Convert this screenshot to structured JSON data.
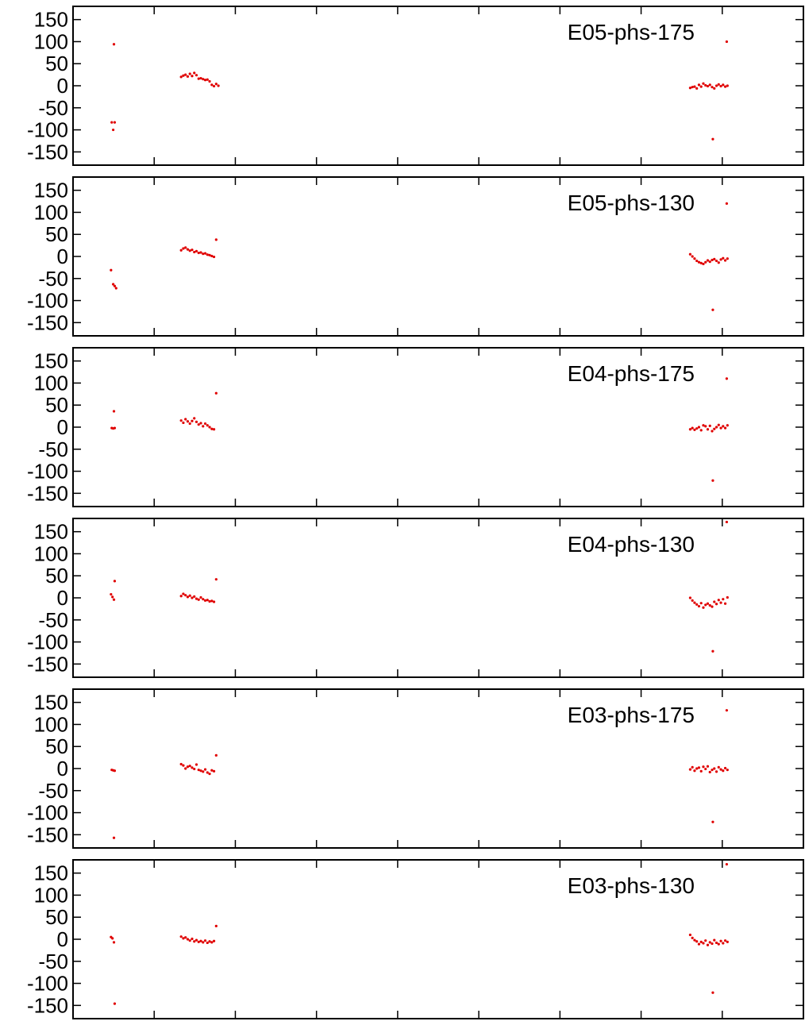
{
  "colors": {
    "series": "#e00000",
    "axis": "#000000",
    "background": "#ffffff"
  },
  "chart_data": [
    {
      "type": "scatter",
      "title": "E05-phs-175",
      "xlabel": "",
      "ylabel": "",
      "x_ticks": 9,
      "xlim": [
        0,
        100
      ],
      "ylim": [
        180,
        -180
      ],
      "y_ticks": [
        "-150",
        "-100",
        "-50",
        "0",
        "50",
        "100",
        "150"
      ],
      "y_tick_values": [
        -150,
        -100,
        -50,
        0,
        50,
        100,
        150
      ],
      "grid": false,
      "series": [
        {
          "points": [
            [
              5.5,
              -100
            ],
            [
              5.3,
              -83
            ],
            [
              5.7,
              -83
            ],
            [
              5.6,
              94
            ],
            [
              14.8,
              20
            ],
            [
              15.1,
              23
            ],
            [
              15.4,
              25
            ],
            [
              15.7,
              21
            ],
            [
              16.0,
              27
            ],
            [
              16.3,
              22
            ],
            [
              16.6,
              29
            ],
            [
              16.9,
              24
            ],
            [
              17.2,
              16
            ],
            [
              17.5,
              17
            ],
            [
              17.8,
              15
            ],
            [
              18.1,
              13
            ],
            [
              18.4,
              14
            ],
            [
              18.7,
              10
            ],
            [
              19.0,
              2
            ],
            [
              19.3,
              -1
            ],
            [
              19.6,
              4
            ],
            [
              19.9,
              0
            ],
            [
              84.5,
              -5
            ],
            [
              84.8,
              -3
            ],
            [
              85.1,
              -2
            ],
            [
              85.4,
              -6
            ],
            [
              85.7,
              2
            ],
            [
              86.0,
              -2
            ],
            [
              86.3,
              5
            ],
            [
              86.6,
              1
            ],
            [
              86.9,
              -1
            ],
            [
              87.2,
              2
            ],
            [
              87.5,
              -3
            ],
            [
              87.8,
              -6
            ],
            [
              88.1,
              0
            ],
            [
              88.4,
              3
            ],
            [
              88.7,
              -1
            ],
            [
              89.0,
              2
            ],
            [
              89.3,
              -2
            ],
            [
              89.6,
              0
            ],
            [
              87.6,
              -121
            ],
            [
              89.5,
              100
            ]
          ]
        }
      ]
    },
    {
      "type": "scatter",
      "title": "E05-phs-130",
      "xlabel": "",
      "ylabel": "",
      "x_ticks": 9,
      "xlim": [
        0,
        100
      ],
      "ylim": [
        180,
        -180
      ],
      "y_ticks": [
        "-150",
        "-100",
        "-50",
        "0",
        "50",
        "100",
        "150"
      ],
      "y_tick_values": [
        -150,
        -100,
        -50,
        0,
        50,
        100,
        150
      ],
      "grid": false,
      "series": [
        {
          "points": [
            [
              5.2,
              -31
            ],
            [
              5.5,
              -63
            ],
            [
              5.7,
              -67
            ],
            [
              5.9,
              -72
            ],
            [
              14.8,
              14
            ],
            [
              15.1,
              18
            ],
            [
              15.4,
              20
            ],
            [
              15.7,
              16
            ],
            [
              16.0,
              13
            ],
            [
              16.3,
              15
            ],
            [
              16.6,
              10
            ],
            [
              16.9,
              12
            ],
            [
              17.2,
              8
            ],
            [
              17.5,
              9
            ],
            [
              17.8,
              6
            ],
            [
              18.1,
              7
            ],
            [
              18.4,
              4
            ],
            [
              18.7,
              3
            ],
            [
              19.0,
              1
            ],
            [
              19.3,
              -1
            ],
            [
              19.6,
              38
            ],
            [
              84.5,
              5
            ],
            [
              84.8,
              0
            ],
            [
              85.1,
              -5
            ],
            [
              85.4,
              -10
            ],
            [
              85.7,
              -13
            ],
            [
              86.0,
              -15
            ],
            [
              86.3,
              -17
            ],
            [
              86.6,
              -13
            ],
            [
              86.9,
              -9
            ],
            [
              87.2,
              -12
            ],
            [
              87.5,
              -8
            ],
            [
              87.8,
              -6
            ],
            [
              88.1,
              -10
            ],
            [
              88.4,
              -14
            ],
            [
              88.7,
              -7
            ],
            [
              89.0,
              -4
            ],
            [
              89.3,
              -9
            ],
            [
              89.6,
              -5
            ],
            [
              87.6,
              -121
            ],
            [
              89.5,
              120
            ]
          ]
        }
      ]
    },
    {
      "type": "scatter",
      "title": "E04-phs-175",
      "xlabel": "",
      "ylabel": "",
      "x_ticks": 9,
      "xlim": [
        0,
        100
      ],
      "ylim": [
        180,
        -180
      ],
      "y_ticks": [
        "-150",
        "-100",
        "-50",
        "0",
        "50",
        "100",
        "150"
      ],
      "y_tick_values": [
        -150,
        -100,
        -50,
        0,
        50,
        100,
        150
      ],
      "grid": false,
      "series": [
        {
          "points": [
            [
              5.3,
              -2
            ],
            [
              5.5,
              -3
            ],
            [
              5.7,
              -2
            ],
            [
              5.6,
              36
            ],
            [
              14.8,
              15
            ],
            [
              15.1,
              10
            ],
            [
              15.4,
              18
            ],
            [
              15.7,
              13
            ],
            [
              16.0,
              8
            ],
            [
              16.3,
              14
            ],
            [
              16.6,
              20
            ],
            [
              16.9,
              12
            ],
            [
              17.2,
              6
            ],
            [
              17.5,
              9
            ],
            [
              17.8,
              2
            ],
            [
              18.1,
              8
            ],
            [
              18.4,
              4
            ],
            [
              18.7,
              0
            ],
            [
              19.0,
              -4
            ],
            [
              19.3,
              -5
            ],
            [
              19.6,
              77
            ],
            [
              84.5,
              -5
            ],
            [
              84.8,
              -2
            ],
            [
              85.1,
              -6
            ],
            [
              85.4,
              -3
            ],
            [
              85.7,
              0
            ],
            [
              86.0,
              -7
            ],
            [
              86.3,
              4
            ],
            [
              86.6,
              2
            ],
            [
              86.9,
              -5
            ],
            [
              87.2,
              3
            ],
            [
              87.5,
              -9
            ],
            [
              87.8,
              -4
            ],
            [
              88.1,
              0
            ],
            [
              88.4,
              5
            ],
            [
              88.7,
              -2
            ],
            [
              89.0,
              2
            ],
            [
              89.3,
              -2
            ],
            [
              89.6,
              4
            ],
            [
              87.6,
              -121
            ],
            [
              89.5,
              110
            ]
          ]
        }
      ]
    },
    {
      "type": "scatter",
      "title": "E04-phs-130",
      "xlabel": "",
      "ylabel": "",
      "x_ticks": 9,
      "xlim": [
        0,
        100
      ],
      "ylim": [
        180,
        -180
      ],
      "y_ticks": [
        "-150",
        "-100",
        "-50",
        "0",
        "50",
        "100",
        "150"
      ],
      "y_tick_values": [
        -150,
        -100,
        -50,
        0,
        50,
        100,
        150
      ],
      "grid": false,
      "series": [
        {
          "points": [
            [
              5.2,
              8
            ],
            [
              5.4,
              2
            ],
            [
              5.6,
              -4
            ],
            [
              5.7,
              38
            ],
            [
              14.8,
              4
            ],
            [
              15.1,
              9
            ],
            [
              15.4,
              6
            ],
            [
              15.7,
              2
            ],
            [
              16.0,
              5
            ],
            [
              16.3,
              0
            ],
            [
              16.6,
              3
            ],
            [
              16.9,
              -2
            ],
            [
              17.2,
              -4
            ],
            [
              17.5,
              1
            ],
            [
              17.8,
              -3
            ],
            [
              18.1,
              -6
            ],
            [
              18.4,
              -5
            ],
            [
              18.7,
              -8
            ],
            [
              19.0,
              -7
            ],
            [
              19.3,
              -9
            ],
            [
              19.6,
              42
            ],
            [
              84.5,
              0
            ],
            [
              84.8,
              -6
            ],
            [
              85.1,
              -11
            ],
            [
              85.4,
              -15
            ],
            [
              85.7,
              -19
            ],
            [
              86.0,
              -12
            ],
            [
              86.3,
              -22
            ],
            [
              86.6,
              -16
            ],
            [
              86.9,
              -13
            ],
            [
              87.2,
              -17
            ],
            [
              87.5,
              -20
            ],
            [
              87.8,
              -9
            ],
            [
              88.1,
              -14
            ],
            [
              88.4,
              -5
            ],
            [
              88.7,
              -11
            ],
            [
              89.0,
              -3
            ],
            [
              89.3,
              -13
            ],
            [
              89.6,
              1
            ],
            [
              87.6,
              -121
            ],
            [
              89.5,
              172
            ]
          ]
        }
      ]
    },
    {
      "type": "scatter",
      "title": "E03-phs-175",
      "xlabel": "",
      "ylabel": "",
      "x_ticks": 9,
      "xlim": [
        0,
        100
      ],
      "ylim": [
        180,
        -180
      ],
      "y_ticks": [
        "-150",
        "-100",
        "-50",
        "0",
        "50",
        "100",
        "150"
      ],
      "y_tick_values": [
        -150,
        -100,
        -50,
        0,
        50,
        100,
        150
      ],
      "grid": false,
      "series": [
        {
          "points": [
            [
              5.3,
              -3
            ],
            [
              5.5,
              -4
            ],
            [
              5.7,
              -5
            ],
            [
              5.6,
              -157
            ],
            [
              14.8,
              10
            ],
            [
              15.1,
              7
            ],
            [
              15.4,
              0
            ],
            [
              15.7,
              4
            ],
            [
              16.0,
              6
            ],
            [
              16.3,
              2
            ],
            [
              16.6,
              -1
            ],
            [
              16.9,
              9
            ],
            [
              17.2,
              -3
            ],
            [
              17.5,
              -5
            ],
            [
              17.8,
              -7
            ],
            [
              18.1,
              -2
            ],
            [
              18.4,
              -9
            ],
            [
              18.7,
              -12
            ],
            [
              19.0,
              -4
            ],
            [
              19.3,
              -6
            ],
            [
              19.6,
              30
            ],
            [
              84.5,
              -2
            ],
            [
              84.8,
              3
            ],
            [
              85.1,
              -5
            ],
            [
              85.4,
              0
            ],
            [
              85.7,
              2
            ],
            [
              86.0,
              -6
            ],
            [
              86.3,
              4
            ],
            [
              86.6,
              -1
            ],
            [
              86.9,
              5
            ],
            [
              87.2,
              -8
            ],
            [
              87.5,
              -3
            ],
            [
              87.8,
              0
            ],
            [
              88.1,
              -7
            ],
            [
              88.4,
              3
            ],
            [
              88.7,
              -2
            ],
            [
              89.0,
              -5
            ],
            [
              89.3,
              1
            ],
            [
              89.6,
              -3
            ],
            [
              87.6,
              -121
            ],
            [
              89.5,
              132
            ]
          ]
        }
      ]
    },
    {
      "type": "scatter",
      "title": "E03-phs-130",
      "xlabel": "",
      "ylabel": "",
      "x_ticks": 9,
      "xlim": [
        0,
        100
      ],
      "ylim": [
        180,
        -180
      ],
      "y_ticks": [
        "-150",
        "-100",
        "-50",
        "0",
        "50",
        "100",
        "150"
      ],
      "y_tick_values": [
        -150,
        -100,
        -50,
        0,
        50,
        100,
        150
      ],
      "grid": false,
      "series": [
        {
          "points": [
            [
              5.2,
              5
            ],
            [
              5.4,
              2
            ],
            [
              5.6,
              -7
            ],
            [
              5.7,
              -146
            ],
            [
              14.8,
              6
            ],
            [
              15.1,
              2
            ],
            [
              15.4,
              4
            ],
            [
              15.7,
              0
            ],
            [
              16.0,
              -3
            ],
            [
              16.3,
              1
            ],
            [
              16.6,
              -5
            ],
            [
              16.9,
              -2
            ],
            [
              17.2,
              -6
            ],
            [
              17.5,
              -4
            ],
            [
              17.8,
              -7
            ],
            [
              18.1,
              -3
            ],
            [
              18.4,
              -8
            ],
            [
              18.7,
              -5
            ],
            [
              19.0,
              -7
            ],
            [
              19.3,
              -4
            ],
            [
              19.6,
              30
            ],
            [
              84.5,
              10
            ],
            [
              84.8,
              3
            ],
            [
              85.1,
              -2
            ],
            [
              85.4,
              -5
            ],
            [
              85.7,
              -11
            ],
            [
              86.0,
              -6
            ],
            [
              86.3,
              -9
            ],
            [
              86.6,
              -3
            ],
            [
              86.9,
              -13
            ],
            [
              87.2,
              -7
            ],
            [
              87.5,
              -10
            ],
            [
              87.8,
              -2
            ],
            [
              88.1,
              -8
            ],
            [
              88.4,
              -11
            ],
            [
              88.7,
              -4
            ],
            [
              89.0,
              -9
            ],
            [
              89.3,
              -3
            ],
            [
              89.6,
              -6
            ],
            [
              87.6,
              -121
            ],
            [
              89.5,
              170
            ]
          ]
        }
      ]
    }
  ]
}
